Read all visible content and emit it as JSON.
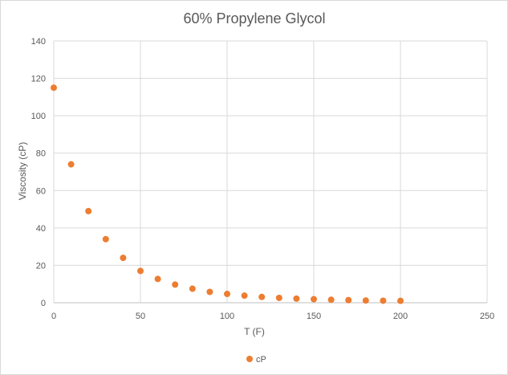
{
  "chart_data": {
    "type": "scatter",
    "title": "60% Propylene Glycol",
    "xlabel": "T (F)",
    "ylabel": "Viscosity (cP)",
    "xlim": [
      0,
      250
    ],
    "ylim": [
      0,
      140
    ],
    "xticks": [
      "0",
      "50",
      "100",
      "150",
      "200",
      "250"
    ],
    "yticks": [
      "0",
      "20",
      "40",
      "60",
      "80",
      "100",
      "120",
      "140"
    ],
    "grid": true,
    "legend": "bottom",
    "series": [
      {
        "name": "cP",
        "color": "#ed7d31",
        "x": [
          0,
          10,
          20,
          30,
          40,
          50,
          60,
          70,
          80,
          90,
          100,
          110,
          120,
          130,
          140,
          150,
          160,
          170,
          180,
          190,
          200
        ],
        "y": [
          115,
          74,
          49,
          34,
          24,
          17,
          12.7,
          9.7,
          7.5,
          5.8,
          4.7,
          3.8,
          3.1,
          2.6,
          2.2,
          1.9,
          1.6,
          1.4,
          1.2,
          1.1,
          1.0
        ]
      }
    ]
  }
}
